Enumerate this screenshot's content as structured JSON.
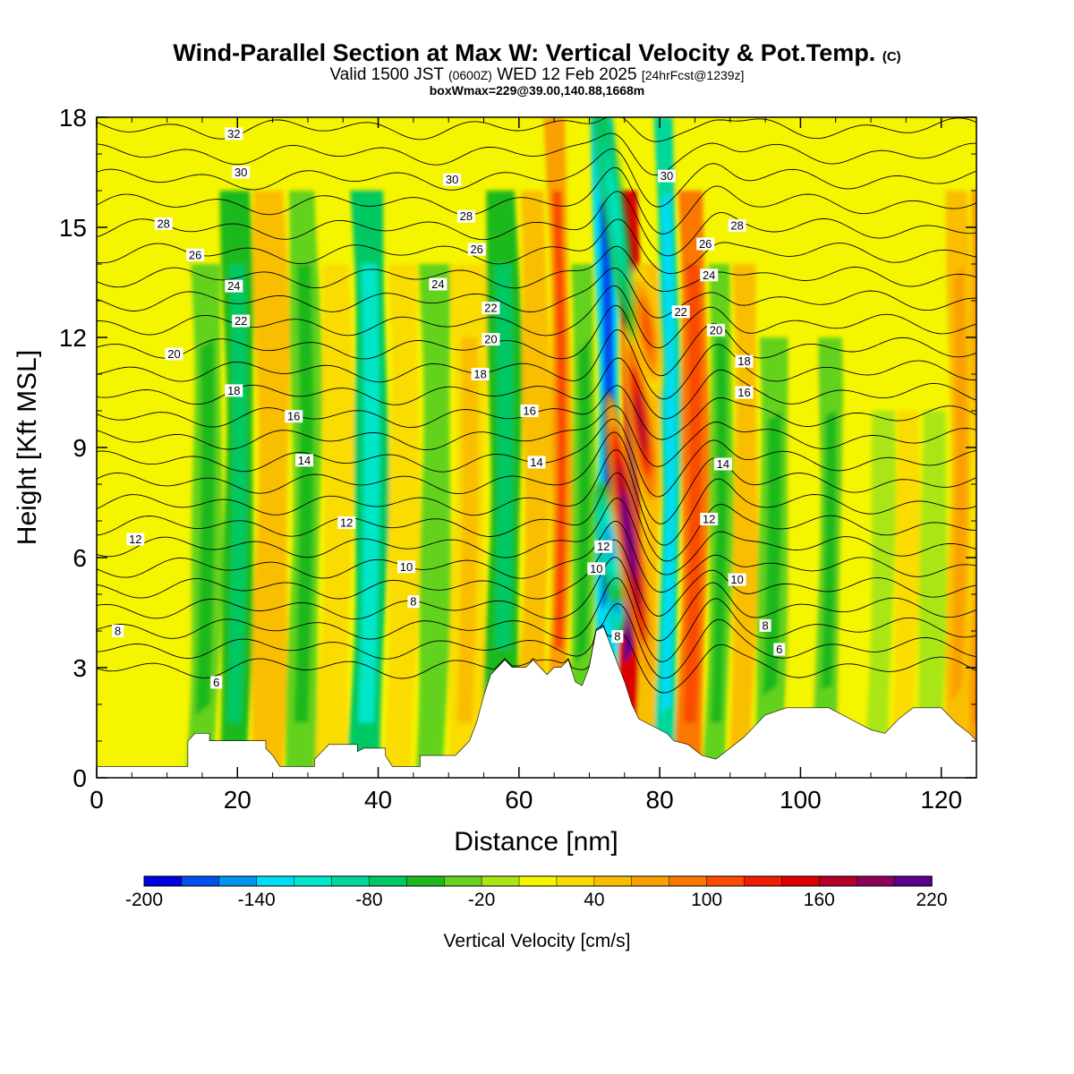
{
  "title": {
    "main": "Wind-Parallel Section at Max W: Vertical Velocity & Pot.Temp.",
    "mark": "(C)",
    "valid_prefix": "Valid 1500 JST",
    "valid_utc": "(0600Z)",
    "valid_date": "WED 12 Feb 2025",
    "forecast": "[24hrFcst@1239z]",
    "box": "boxWmax=229@39.00,140.88,1668m"
  },
  "chart_data": {
    "type": "heatmap",
    "xlabel": "Distance [nm]",
    "ylabel": "Height [Kft MSL]",
    "xlim": [
      0,
      125
    ],
    "ylim": [
      0,
      18
    ],
    "x_ticks": [
      "0",
      "20",
      "40",
      "60",
      "80",
      "100",
      "120"
    ],
    "y_ticks": [
      "0",
      "3",
      "6",
      "9",
      "12",
      "15",
      "18"
    ],
    "colorbar": {
      "label": "Vertical Velocity [cm/s]",
      "levels": [
        -200,
        -180,
        -160,
        -140,
        -120,
        -100,
        -80,
        -60,
        -40,
        -20,
        0,
        20,
        40,
        60,
        80,
        100,
        120,
        140,
        160,
        180,
        200,
        220
      ],
      "tick_labels": [
        "-200",
        "-140",
        "-80",
        "-20",
        "40",
        "100",
        "160",
        "220"
      ],
      "colors": [
        "#0000e0",
        "#0050f0",
        "#0096f0",
        "#00dcf5",
        "#00e6c8",
        "#00d79b",
        "#00c864",
        "#1eb91e",
        "#64d21e",
        "#aae614",
        "#f5f500",
        "#fadc00",
        "#fabe00",
        "#faa000",
        "#fa7800",
        "#fa4b00",
        "#f01e00",
        "#dc0000",
        "#b40028",
        "#8c005a",
        "#5a008c"
      ]
    },
    "vertical_velocity_bands": [
      {
        "x": 0,
        "w": 1,
        "ext": 0
      },
      {
        "x": 5,
        "w": -5,
        "ext": 8
      },
      {
        "x": 10,
        "w": 5,
        "ext": 8
      },
      {
        "x": 15,
        "w": -30,
        "ext": 14
      },
      {
        "x": 19,
        "w": -50,
        "ext": 16
      },
      {
        "x": 24,
        "w": 40,
        "ext": 16
      },
      {
        "x": 29,
        "w": -30,
        "ext": 16
      },
      {
        "x": 33,
        "w": 20,
        "ext": 14
      },
      {
        "x": 38,
        "w": -75,
        "ext": 16
      },
      {
        "x": 43,
        "w": 20,
        "ext": 14
      },
      {
        "x": 47,
        "w": -25,
        "ext": 14
      },
      {
        "x": 52,
        "w": 30,
        "ext": 14
      },
      {
        "x": 57,
        "w": -55,
        "ext": 16
      },
      {
        "x": 62,
        "w": 40,
        "ext": 16
      },
      {
        "x": 65,
        "w": 75,
        "ext": 18
      },
      {
        "x": 68,
        "w": -40,
        "ext": 14
      },
      {
        "x": 72,
        "w": -130,
        "ext": 18
      },
      {
        "x": 75,
        "w": 150,
        "ext": 16
      },
      {
        "x": 78,
        "w": 40,
        "ext": 14
      },
      {
        "x": 80,
        "w": -95,
        "ext": 18
      },
      {
        "x": 84,
        "w": 80,
        "ext": 16
      },
      {
        "x": 88,
        "w": -40,
        "ext": 14
      },
      {
        "x": 91,
        "w": 40,
        "ext": 14
      },
      {
        "x": 95,
        "w": -30,
        "ext": 12
      },
      {
        "x": 100,
        "w": 15,
        "ext": 14
      },
      {
        "x": 103,
        "w": -35,
        "ext": 12
      },
      {
        "x": 107,
        "w": 10,
        "ext": 10
      },
      {
        "x": 111,
        "w": -20,
        "ext": 10
      },
      {
        "x": 114,
        "w": 25,
        "ext": 10
      },
      {
        "x": 118,
        "w": -10,
        "ext": 10
      },
      {
        "x": 122,
        "w": 55,
        "ext": 16
      },
      {
        "x": 125,
        "w": 75,
        "ext": 16
      }
    ],
    "core_features": [
      {
        "x": 73.6,
        "y": 5.0,
        "w": -200,
        "rx": 0.9,
        "ry": 0.8
      },
      {
        "x": 72.8,
        "y": 6.4,
        "w": -150,
        "rx": 1.2,
        "ry": 1.2
      },
      {
        "x": 75.6,
        "y": 6.6,
        "w": 210,
        "rx": 1.3,
        "ry": 2.8
      },
      {
        "x": 77.3,
        "y": 9.7,
        "w": 160,
        "rx": 1.4,
        "ry": 2.0
      },
      {
        "x": 78.2,
        "y": 12.2,
        "w": 110,
        "rx": 1.3,
        "ry": 1.3
      },
      {
        "x": 73.5,
        "y": 15.5,
        "w": -120,
        "rx": 1.1,
        "ry": 2.6
      }
    ],
    "terrain": [
      [
        0,
        0.3
      ],
      [
        13,
        0.3
      ],
      [
        13,
        1.0
      ],
      [
        14,
        1.2
      ],
      [
        16,
        1.2
      ],
      [
        16,
        1.0
      ],
      [
        24,
        1.0
      ],
      [
        24,
        0.8
      ],
      [
        25,
        0.6
      ],
      [
        26,
        0.3
      ],
      [
        31,
        0.3
      ],
      [
        31,
        0.5
      ],
      [
        32,
        0.7
      ],
      [
        33,
        0.9
      ],
      [
        37,
        0.9
      ],
      [
        37,
        0.7
      ],
      [
        38,
        0.8
      ],
      [
        41,
        0.8
      ],
      [
        41,
        0.6
      ],
      [
        42,
        0.3
      ],
      [
        46,
        0.3
      ],
      [
        46,
        0.6
      ],
      [
        51,
        0.6
      ],
      [
        52,
        0.8
      ],
      [
        53,
        1.0
      ],
      [
        54,
        1.5
      ],
      [
        55,
        2.2
      ],
      [
        56,
        2.8
      ],
      [
        57,
        3.0
      ],
      [
        58,
        3.2
      ],
      [
        59,
        3.0
      ],
      [
        61,
        3.0
      ],
      [
        62,
        3.2
      ],
      [
        63,
        3.0
      ],
      [
        64,
        2.8
      ],
      [
        65,
        3.0
      ],
      [
        66,
        3.0
      ],
      [
        67,
        3.2
      ],
      [
        68,
        2.6
      ],
      [
        69,
        2.5
      ],
      [
        70,
        3.0
      ],
      [
        71,
        4.0
      ],
      [
        72,
        4.1
      ],
      [
        73,
        3.6
      ],
      [
        74,
        3.1
      ],
      [
        75,
        2.6
      ],
      [
        76,
        2.0
      ],
      [
        77,
        1.6
      ],
      [
        79,
        1.4
      ],
      [
        81,
        1.2
      ],
      [
        82,
        1.0
      ],
      [
        84,
        0.9
      ],
      [
        86,
        0.6
      ],
      [
        88,
        0.5
      ],
      [
        90,
        0.8
      ],
      [
        92,
        1.1
      ],
      [
        94,
        1.5
      ],
      [
        95,
        1.7
      ],
      [
        98,
        1.9
      ],
      [
        104,
        1.9
      ],
      [
        106,
        1.7
      ],
      [
        108,
        1.5
      ],
      [
        110,
        1.3
      ],
      [
        112,
        1.2
      ],
      [
        114,
        1.6
      ],
      [
        116,
        1.9
      ],
      [
        120,
        1.9
      ],
      [
        122,
        1.5
      ],
      [
        124,
        1.2
      ],
      [
        125,
        1.0
      ]
    ],
    "theta_contours": [
      6,
      8,
      10,
      12,
      14,
      16,
      18,
      20,
      22,
      24,
      26,
      28,
      30,
      32
    ],
    "contour_labels": [
      {
        "text": "32",
        "x": 19.5,
        "y": 17.55
      },
      {
        "text": "30",
        "x": 20.5,
        "y": 16.5
      },
      {
        "text": "28",
        "x": 9.5,
        "y": 15.1
      },
      {
        "text": "26",
        "x": 14,
        "y": 14.25
      },
      {
        "text": "24",
        "x": 19.5,
        "y": 13.4
      },
      {
        "text": "22",
        "x": 20.5,
        "y": 12.45
      },
      {
        "text": "20",
        "x": 11,
        "y": 11.55
      },
      {
        "text": "18",
        "x": 19.5,
        "y": 10.55
      },
      {
        "text": "16",
        "x": 28,
        "y": 9.85
      },
      {
        "text": "14",
        "x": 29.5,
        "y": 8.65
      },
      {
        "text": "12",
        "x": 5.5,
        "y": 6.5
      },
      {
        "text": "12",
        "x": 35.5,
        "y": 6.95
      },
      {
        "text": "10",
        "x": 44,
        "y": 5.75
      },
      {
        "text": "8",
        "x": 45,
        "y": 4.8
      },
      {
        "text": "8",
        "x": 3,
        "y": 4.0
      },
      {
        "text": "6",
        "x": 17,
        "y": 2.6
      },
      {
        "text": "30",
        "x": 50.5,
        "y": 16.3
      },
      {
        "text": "28",
        "x": 52.5,
        "y": 15.3
      },
      {
        "text": "26",
        "x": 54,
        "y": 14.4
      },
      {
        "text": "24",
        "x": 48.5,
        "y": 13.45
      },
      {
        "text": "22",
        "x": 56,
        "y": 12.8
      },
      {
        "text": "20",
        "x": 56,
        "y": 11.95
      },
      {
        "text": "18",
        "x": 54.5,
        "y": 11.0
      },
      {
        "text": "16",
        "x": 61.5,
        "y": 10.0
      },
      {
        "text": "14",
        "x": 62.5,
        "y": 8.6
      },
      {
        "text": "12",
        "x": 72,
        "y": 6.3
      },
      {
        "text": "10",
        "x": 71,
        "y": 5.7
      },
      {
        "text": "8",
        "x": 74,
        "y": 3.85
      },
      {
        "text": "30",
        "x": 81,
        "y": 16.4
      },
      {
        "text": "28",
        "x": 91,
        "y": 15.05
      },
      {
        "text": "26",
        "x": 86.5,
        "y": 14.55
      },
      {
        "text": "24",
        "x": 87,
        "y": 13.7
      },
      {
        "text": "22",
        "x": 83,
        "y": 12.7
      },
      {
        "text": "20",
        "x": 88,
        "y": 12.2
      },
      {
        "text": "18",
        "x": 92,
        "y": 11.35
      },
      {
        "text": "16",
        "x": 92,
        "y": 10.5
      },
      {
        "text": "14",
        "x": 89,
        "y": 8.55
      },
      {
        "text": "12",
        "x": 87,
        "y": 7.05
      },
      {
        "text": "10",
        "x": 91,
        "y": 5.4
      },
      {
        "text": "8",
        "x": 95,
        "y": 4.15
      },
      {
        "text": "6",
        "x": 97,
        "y": 3.5
      }
    ]
  }
}
